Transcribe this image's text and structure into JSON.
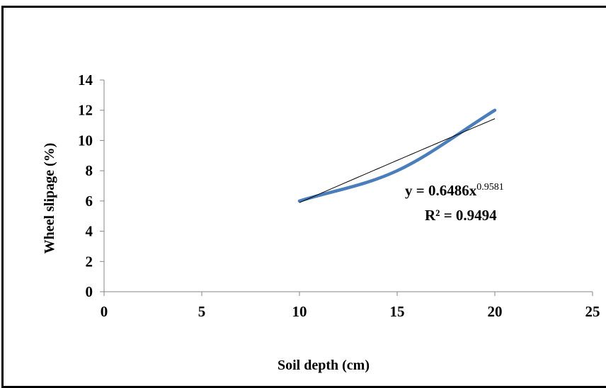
{
  "chart_data": {
    "type": "line",
    "title": "",
    "xlabel": "Soil depth (cm)",
    "ylabel": "Wheel slipage (%)",
    "xlim": [
      0,
      25
    ],
    "ylim": [
      0,
      14
    ],
    "xticks": [
      0,
      5,
      10,
      15,
      20,
      25
    ],
    "yticks": [
      0,
      2,
      4,
      6,
      8,
      10,
      12,
      14
    ],
    "grid": false,
    "legend": "none",
    "series": [
      {
        "x": [
          10,
          15,
          20
        ],
        "y": [
          6,
          8,
          12
        ],
        "style": "smoothed",
        "color": "#4A7EBB"
      }
    ],
    "trendline": {
      "type": "power",
      "coefficient": 0.6486,
      "exponent": 0.9581,
      "x_range": [
        10,
        20
      ],
      "color": "#000000"
    },
    "annotations": {
      "equation_base": "y = 0.6486x",
      "equation_exponent": "0.9581",
      "r_squared": "R² = 0.9494"
    }
  }
}
